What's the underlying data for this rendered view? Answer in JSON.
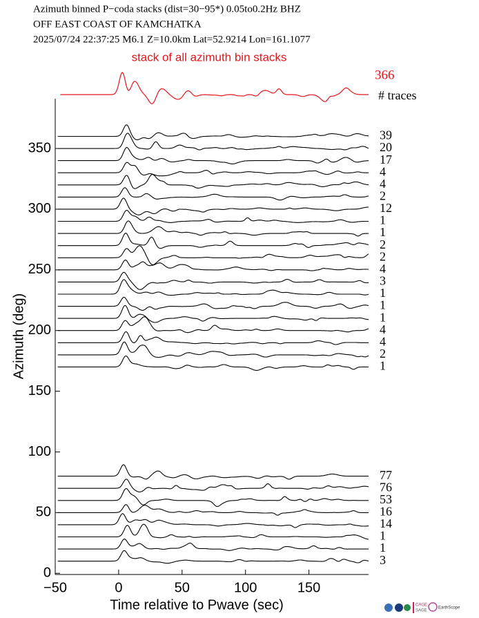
{
  "chart_data": {
    "type": "wiggle",
    "title": [
      "Azimuth binned P−coda stacks (dist=30−95*)  0.05to0.2Hz  BHZ",
      "OFF EAST COAST OF KAMCHATKA",
      "2025/07/24  22:37:25  M6.1  Z=10.0km Lat=52.9214 Lon=161.1077"
    ],
    "stack": {
      "label": "stack of all azimuth bin stacks",
      "count": 366,
      "color": "#e8141b"
    },
    "count_header": "# traces",
    "xlabel": "Time relative to Pwave (sec)",
    "ylabel": "Azimuth (deg)",
    "xlim": [
      -50,
      197
    ],
    "ylim": [
      -1,
      391
    ],
    "xticks": [
      {
        "value": -50,
        "label": "−50"
      },
      0,
      50,
      100,
      150
    ],
    "yticks": [
      0,
      50,
      100,
      150,
      200,
      250,
      300,
      350
    ],
    "color": "#000000",
    "traces": [
      {
        "azimuth": 360,
        "count": 39
      },
      {
        "azimuth": 350,
        "count": 20
      },
      {
        "azimuth": 340,
        "count": 17
      },
      {
        "azimuth": 330,
        "count": 4
      },
      {
        "azimuth": 320,
        "count": 4
      },
      {
        "azimuth": 310,
        "count": 2
      },
      {
        "azimuth": 300,
        "count": 12
      },
      {
        "azimuth": 290,
        "count": 1
      },
      {
        "azimuth": 280,
        "count": 1
      },
      {
        "azimuth": 270,
        "count": 2
      },
      {
        "azimuth": 260,
        "count": 2
      },
      {
        "azimuth": 250,
        "count": 4
      },
      {
        "azimuth": 240,
        "count": 3
      },
      {
        "azimuth": 230,
        "count": 1
      },
      {
        "azimuth": 220,
        "count": 1
      },
      {
        "azimuth": 210,
        "count": 1
      },
      {
        "azimuth": 200,
        "count": 4
      },
      {
        "azimuth": 190,
        "count": 4
      },
      {
        "azimuth": 180,
        "count": 2
      },
      {
        "azimuth": 170,
        "count": 1
      },
      {
        "azimuth": 80,
        "count": 77
      },
      {
        "azimuth": 70,
        "count": 76
      },
      {
        "azimuth": 60,
        "count": 53
      },
      {
        "azimuth": 50,
        "count": 16
      },
      {
        "azimuth": 40,
        "count": 14
      },
      {
        "azimuth": 30,
        "count": 1
      },
      {
        "azimuth": 20,
        "count": 1
      },
      {
        "azimuth": 10,
        "count": 3
      }
    ]
  }
}
